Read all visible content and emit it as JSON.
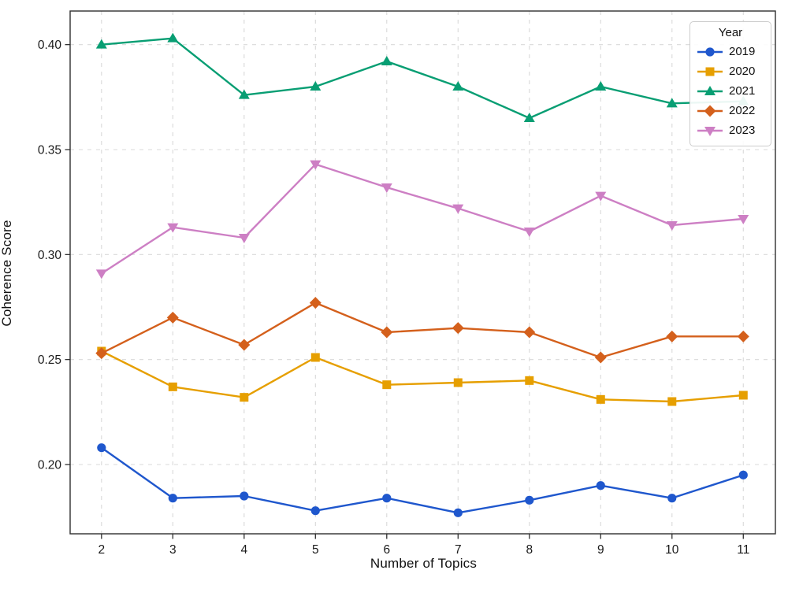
{
  "chart_data": {
    "type": "line",
    "title": "",
    "xlabel": "Number of Topics",
    "ylabel": "Coherence Score",
    "x": [
      2,
      3,
      4,
      5,
      6,
      7,
      8,
      9,
      10,
      11
    ],
    "xlim": [
      1.56,
      11.45
    ],
    "ylim": [
      0.167,
      0.416
    ],
    "yticks": [
      0.2,
      0.25,
      0.3,
      0.35,
      0.4
    ],
    "ytick_labels": [
      "0.20",
      "0.25",
      "0.30",
      "0.35",
      "0.40"
    ],
    "xtick_labels": [
      "2",
      "3",
      "4",
      "5",
      "6",
      "7",
      "8",
      "9",
      "10",
      "11"
    ],
    "grid": "both-dashed",
    "legend": {
      "title": "Year",
      "position": "upper-right"
    },
    "colors": {
      "grid": "#d9d9d9",
      "spine": "#2f2f2f",
      "tick_text": "#1a1a1a"
    },
    "series": [
      {
        "name": "2019",
        "color": "#1f57cd",
        "marker": "circle",
        "values": [
          0.208,
          0.184,
          0.185,
          0.178,
          0.184,
          0.177,
          0.183,
          0.19,
          0.184,
          0.195
        ]
      },
      {
        "name": "2020",
        "color": "#e69f00",
        "marker": "square",
        "values": [
          0.254,
          0.237,
          0.232,
          0.251,
          0.238,
          0.239,
          0.24,
          0.231,
          0.23,
          0.233
        ]
      },
      {
        "name": "2021",
        "color": "#089e73",
        "marker": "triangle-up",
        "values": [
          0.4,
          0.403,
          0.376,
          0.38,
          0.392,
          0.38,
          0.365,
          0.38,
          0.372,
          0.373
        ]
      },
      {
        "name": "2022",
        "color": "#d4601c",
        "marker": "diamond",
        "values": [
          0.253,
          0.27,
          0.257,
          0.277,
          0.263,
          0.265,
          0.263,
          0.251,
          0.261,
          0.261
        ]
      },
      {
        "name": "2023",
        "color": "#cd7fc4",
        "marker": "triangle-down",
        "values": [
          0.291,
          0.313,
          0.308,
          0.343,
          0.332,
          0.322,
          0.311,
          0.328,
          0.314,
          0.317
        ]
      }
    ]
  }
}
